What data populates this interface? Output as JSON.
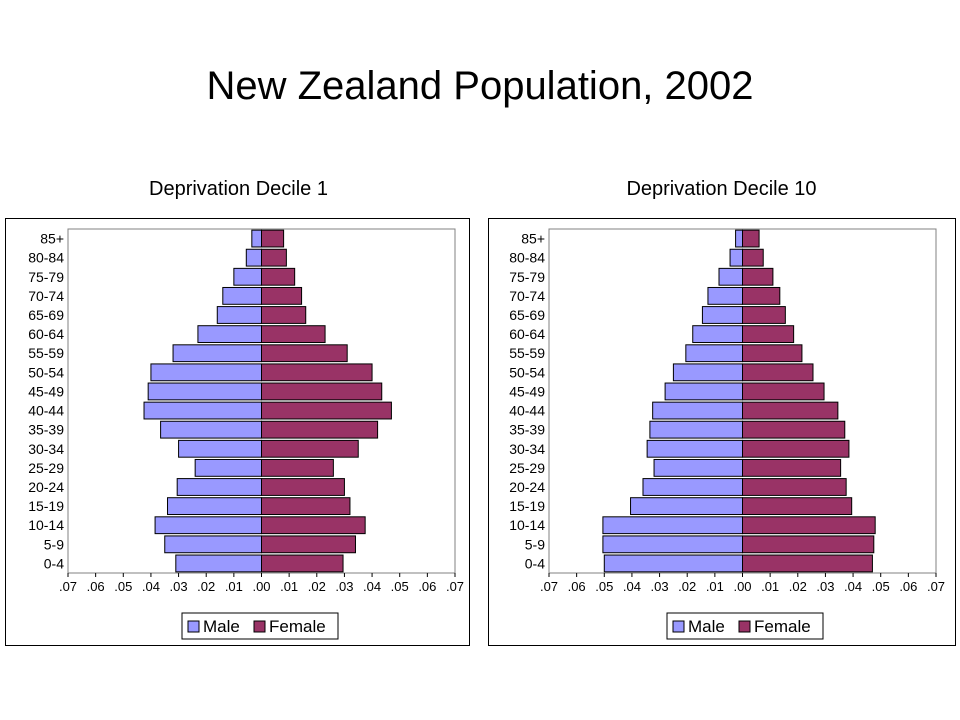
{
  "title": "New Zealand Population, 2002",
  "colors": {
    "male": "#9999ff",
    "female": "#993366",
    "bar_stroke": "#000000"
  },
  "chart_data": [
    {
      "type": "bar",
      "orientation": "horizontal",
      "layout": "population-pyramid",
      "title": "Deprivation Decile 1",
      "categories": [
        "85+",
        "80-84",
        "75-79",
        "70-74",
        "65-69",
        "60-64",
        "55-59",
        "50-54",
        "45-49",
        "40-44",
        "35-39",
        "30-34",
        "25-29",
        "20-24",
        "15-19",
        "10-14",
        "5-9",
        "0-4"
      ],
      "xlim": [
        -0.07,
        0.07
      ],
      "xticks": [
        ".07",
        ".06",
        ".05",
        ".04",
        ".03",
        ".02",
        ".01",
        ".00",
        ".01",
        ".02",
        ".03",
        ".04",
        ".05",
        ".06",
        ".07"
      ],
      "legend": "bottom",
      "series": [
        {
          "name": "Male",
          "values": [
            0.0035,
            0.0055,
            0.01,
            0.014,
            0.016,
            0.023,
            0.032,
            0.04,
            0.041,
            0.0425,
            0.0365,
            0.03,
            0.024,
            0.0305,
            0.034,
            0.0385,
            0.035,
            0.031
          ]
        },
        {
          "name": "Female",
          "values": [
            0.008,
            0.009,
            0.012,
            0.0145,
            0.016,
            0.023,
            0.031,
            0.04,
            0.0435,
            0.047,
            0.042,
            0.035,
            0.026,
            0.03,
            0.032,
            0.0375,
            0.034,
            0.0295
          ]
        }
      ]
    },
    {
      "type": "bar",
      "orientation": "horizontal",
      "layout": "population-pyramid",
      "title": "Deprivation Decile 10",
      "categories": [
        "85+",
        "80-84",
        "75-79",
        "70-74",
        "65-69",
        "60-64",
        "55-59",
        "50-54",
        "45-49",
        "40-44",
        "35-39",
        "30-34",
        "25-29",
        "20-24",
        "15-19",
        "10-14",
        "5-9",
        "0-4"
      ],
      "xlim": [
        -0.07,
        0.07
      ],
      "xticks": [
        ".07",
        ".06",
        ".05",
        ".04",
        ".03",
        ".02",
        ".01",
        ".00",
        ".01",
        ".02",
        ".03",
        ".04",
        ".05",
        ".06",
        ".07"
      ],
      "legend": "bottom",
      "series": [
        {
          "name": "Male",
          "values": [
            0.0025,
            0.0045,
            0.0085,
            0.0125,
            0.0145,
            0.018,
            0.0205,
            0.025,
            0.028,
            0.0325,
            0.0335,
            0.0345,
            0.032,
            0.036,
            0.0405,
            0.0505,
            0.0505,
            0.05
          ]
        },
        {
          "name": "Female",
          "values": [
            0.006,
            0.0075,
            0.011,
            0.0135,
            0.0155,
            0.0185,
            0.0215,
            0.0255,
            0.0295,
            0.0345,
            0.037,
            0.0385,
            0.0355,
            0.0375,
            0.0395,
            0.048,
            0.0475,
            0.047
          ]
        }
      ]
    }
  ]
}
